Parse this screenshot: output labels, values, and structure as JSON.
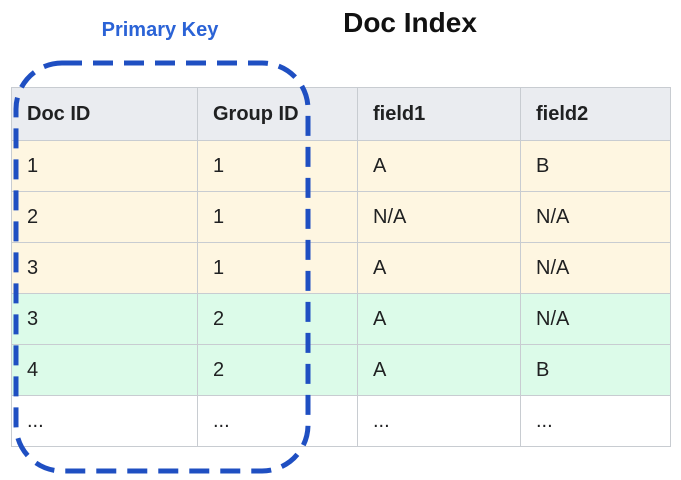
{
  "title": "Doc Index",
  "primary_key_label": "Primary Key",
  "colors": {
    "header_bg": "#eaecf0",
    "group1_bg": "#fef6e1",
    "group2_bg": "#dcfbe9",
    "empty_bg": "#ffffff",
    "accent": "#2b63d6",
    "outline": "#1f4fc2"
  },
  "table": {
    "headers": [
      "Doc ID",
      "Group ID",
      "field1",
      "field2"
    ],
    "rows": [
      {
        "cells": [
          "1",
          "1",
          "A",
          "B"
        ],
        "group": "group1"
      },
      {
        "cells": [
          "2",
          "1",
          "N/A",
          "N/A"
        ],
        "group": "group1"
      },
      {
        "cells": [
          "3",
          "1",
          "A",
          "N/A"
        ],
        "group": "group1"
      },
      {
        "cells": [
          "3",
          "2",
          "A",
          "N/A"
        ],
        "group": "group2"
      },
      {
        "cells": [
          "4",
          "2",
          "A",
          "B"
        ],
        "group": "group2"
      },
      {
        "cells": [
          "...",
          "...",
          "...",
          "..."
        ],
        "group": "empty"
      }
    ]
  }
}
